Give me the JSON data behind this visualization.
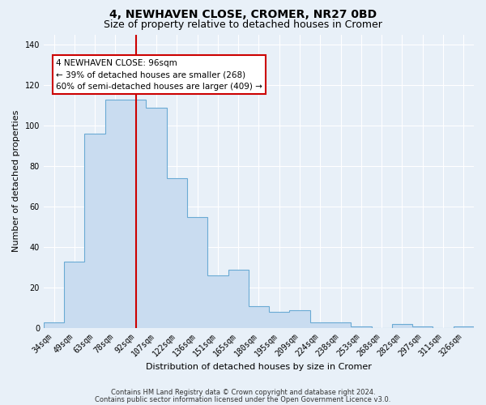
{
  "title": "4, NEWHAVEN CLOSE, CROMER, NR27 0BD",
  "subtitle": "Size of property relative to detached houses in Cromer",
  "xlabel": "Distribution of detached houses by size in Cromer",
  "ylabel": "Number of detached properties",
  "footer_line1": "Contains HM Land Registry data © Crown copyright and database right 2024.",
  "footer_line2": "Contains public sector information licensed under the Open Government Licence v3.0.",
  "bin_labels": [
    "34sqm",
    "49sqm",
    "63sqm",
    "78sqm",
    "92sqm",
    "107sqm",
    "122sqm",
    "136sqm",
    "151sqm",
    "165sqm",
    "180sqm",
    "195sqm",
    "209sqm",
    "224sqm",
    "238sqm",
    "253sqm",
    "268sqm",
    "282sqm",
    "297sqm",
    "311sqm",
    "326sqm"
  ],
  "bar_values": [
    3,
    33,
    96,
    113,
    113,
    109,
    74,
    55,
    26,
    29,
    11,
    8,
    9,
    3,
    3,
    1,
    0,
    2,
    1,
    0,
    1
  ],
  "bar_color": "#c9dcf0",
  "bar_edgecolor": "#6aaad4",
  "vline_color": "#cc0000",
  "vline_x_index": 4.5,
  "ylim": [
    0,
    145
  ],
  "yticks": [
    0,
    20,
    40,
    60,
    80,
    100,
    120,
    140
  ],
  "annotation_text": "4 NEWHAVEN CLOSE: 96sqm\n← 39% of detached houses are smaller (268)\n60% of semi-detached houses are larger (409) →",
  "annotation_box_color": "#ffffff",
  "annotation_box_edgecolor": "#cc0000",
  "bg_color": "#e8f0f8",
  "grid_color": "#ffffff",
  "title_fontsize": 10,
  "subtitle_fontsize": 9,
  "axis_label_fontsize": 8,
  "tick_fontsize": 7,
  "annotation_fontsize": 7.5,
  "footer_fontsize": 6
}
